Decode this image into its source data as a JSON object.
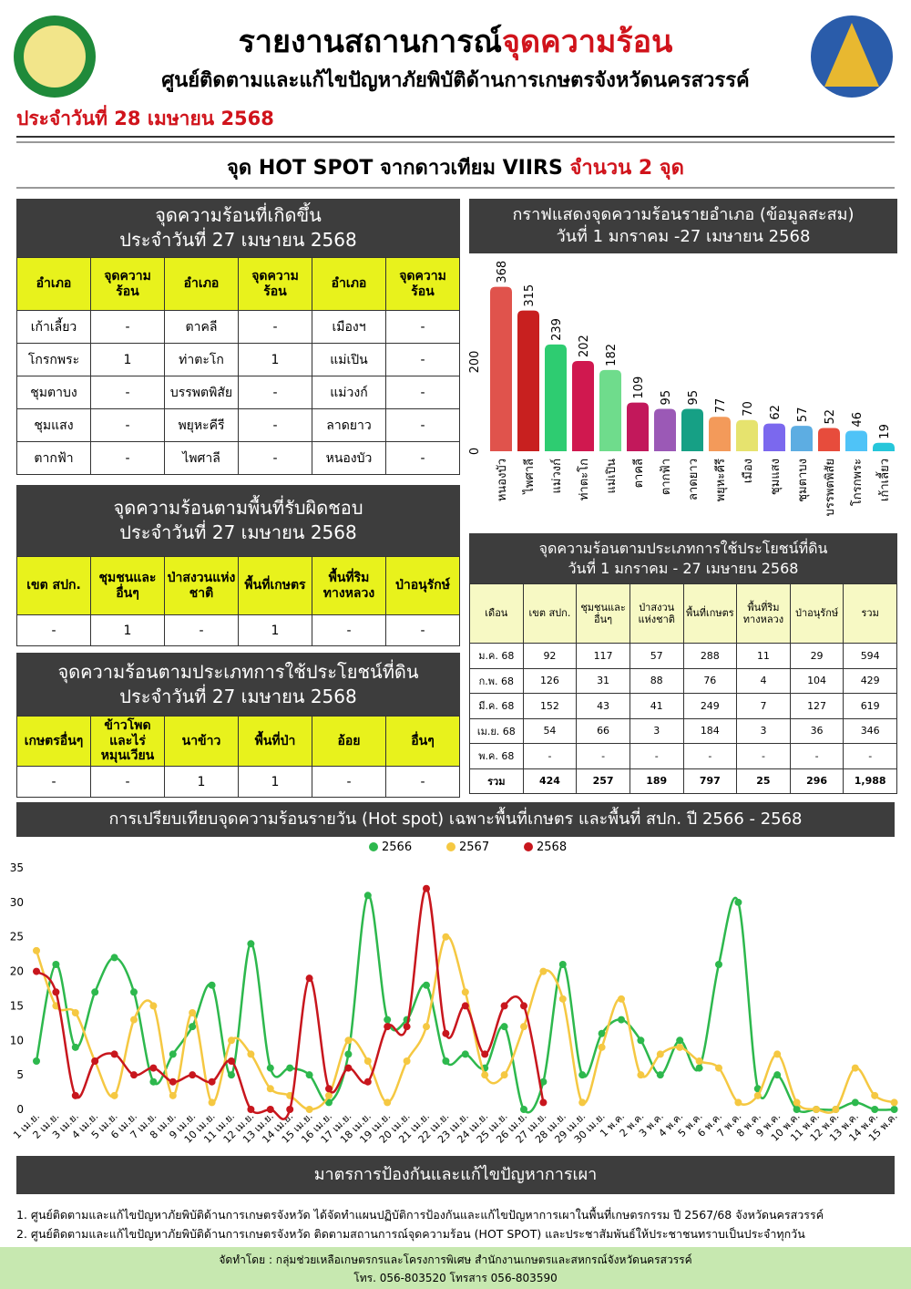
{
  "header": {
    "title": "รายงานสถานการณ์",
    "title_highlight": "จุดความร้อน",
    "subtitle": "ศูนย์ติดตามและแก้ไขปัญหาภัยพิบัติด้านการเกษตรจังหวัดนครสวรรค์",
    "date": "ประจำวันที่ 28 เมษายน 2568"
  },
  "banner": {
    "text": "จุด HOT SPOT จากดาวเทียม VIIRS",
    "highlight": "จำนวน 2 จุด"
  },
  "tables": [
    {
      "title": "จุดความร้อนที่เกิดขึ้น",
      "subtitle": "ประจำวันที่ 27 เมษายน 2568",
      "columns": [
        "อำเภอ",
        "จุดความร้อน",
        "อำเภอ",
        "จุดความร้อน",
        "อำเภอ",
        "จุดความร้อน"
      ],
      "rows": [
        [
          "เก้าเลี้ยว",
          "-",
          "ตาคลี",
          "-",
          "เมืองฯ",
          "-"
        ],
        [
          "โกรกพระ",
          "1",
          "ท่าตะโก",
          "1",
          "แม่เปิน",
          "-"
        ],
        [
          "ชุมตาบง",
          "-",
          "บรรพตพิสัย",
          "-",
          "แม่วงก์",
          "-"
        ],
        [
          "ชุมแสง",
          "-",
          "พยุหะคีรี",
          "-",
          "ลาดยาว",
          "-"
        ],
        [
          "ตากฟ้า",
          "-",
          "ไพศาลี",
          "-",
          "หนองบัว",
          "-"
        ]
      ]
    },
    {
      "title": "จุดความร้อนตามพื้นที่รับผิดชอบ",
      "subtitle": "ประจำวันที่ 27 เมษายน 2568",
      "columns": [
        "เขต สปก.",
        "ชุมชนและอื่นๆ",
        "ป่าสงวนแห่งชาติ",
        "พื้นที่เกษตร",
        "พื้นที่ริมทางหลวง",
        "ป่าอนุรักษ์"
      ],
      "rows": [
        [
          "-",
          "1",
          "-",
          "1",
          "-",
          "-"
        ]
      ]
    },
    {
      "title": "จุดความร้อนตามประเภทการใช้ประโยชน์ที่ดิน",
      "subtitle": "ประจำวันที่ 27 เมษายน 2568",
      "columns": [
        "เกษตรอื่นๆ",
        "ข้าวโพดและไร่หมุนเวียน",
        "นาข้าว",
        "พื้นที่ป่า",
        "อ้อย",
        "อื่นๆ"
      ],
      "rows": [
        [
          "-",
          "-",
          "1",
          "1",
          "-",
          "-"
        ]
      ]
    },
    {
      "title": "จุดความร้อนตามประเภทการใช้ประโยชน์ที่ดิน",
      "subtitle": "วันที่ 1 มกราคม - 27 เมษายน 2568",
      "columns": [
        "เดือน",
        "เขต สปก.",
        "ชุมชนและอื่นๆ",
        "ป่าสงวนแห่งชาติ",
        "พื้นที่เกษตร",
        "พื้นที่ริมทางหลวง",
        "ป่าอนุรักษ์",
        "รวม"
      ],
      "rows": [
        [
          "ม.ค. 68",
          "92",
          "117",
          "57",
          "288",
          "11",
          "29",
          "594"
        ],
        [
          "ก.พ. 68",
          "126",
          "31",
          "88",
          "76",
          "4",
          "104",
          "429"
        ],
        [
          "มี.ค. 68",
          "152",
          "43",
          "41",
          "249",
          "7",
          "127",
          "619"
        ],
        [
          "เม.ย. 68",
          "54",
          "66",
          "3",
          "184",
          "3",
          "36",
          "346"
        ],
        [
          "พ.ค. 68",
          "-",
          "-",
          "-",
          "-",
          "-",
          "-",
          "-"
        ],
        [
          "รวม",
          "424",
          "257",
          "189",
          "797",
          "25",
          "296",
          "1,988"
        ]
      ]
    }
  ],
  "chart_data": [
    {
      "type": "bar",
      "title": "กราฟแสดงจุดความร้อนรายอำเภอ (ข้อมูลสะสม)",
      "subtitle": "วันที่ 1 มกราคม -27 เมษายน 2568",
      "categories": [
        "หนองบัว",
        "ไพศาลี",
        "แม่วงก์",
        "ท่าตะโก",
        "แม่เปิน",
        "ตาคลี",
        "ตากฟ้า",
        "ลาดยาว",
        "พยุหะคีรี",
        "เมือง",
        "ชุมแสง",
        "ชุมตาบง",
        "บรรพตพิสัย",
        "โกรกพระ",
        "เก้าเลี้ยว"
      ],
      "values": [
        368,
        315,
        239,
        202,
        182,
        109,
        95,
        95,
        77,
        70,
        62,
        57,
        52,
        46,
        19
      ],
      "colors": [
        "#e0534c",
        "#c8201f",
        "#2ecc71",
        "#d0184f",
        "#6fdc8c",
        "#c2185b",
        "#9b59b6",
        "#16a085",
        "#f39a5a",
        "#e6e36e",
        "#7b68ee",
        "#5dade2",
        "#e74c3c",
        "#4fc3f7",
        "#26c6da"
      ],
      "ylim": [
        0,
        400
      ],
      "yticks": [
        0,
        200
      ],
      "grid": false
    },
    {
      "type": "line",
      "title": "การเปรียบเทียบจุดความร้อนรายวัน (Hot spot)  เฉพาะพื้นที่เกษตร และพื้นที่ สปก. ปี 2566 - 2568",
      "categories": [
        "1 เม.ย.",
        "2 เม.ย.",
        "3 เม.ย.",
        "4 เม.ย.",
        "5 เม.ย.",
        "6 เม.ย.",
        "7 เม.ย.",
        "8 เม.ย.",
        "9 เม.ย.",
        "10 เม.ย.",
        "11 เม.ย.",
        "12 เม.ย.",
        "13 เม.ย.",
        "14 เม.ย.",
        "15 เม.ย.",
        "16 เม.ย.",
        "17 เม.ย.",
        "18 เม.ย.",
        "19 เม.ย.",
        "20 เม.ย.",
        "21 เม.ย.",
        "22 เม.ย.",
        "23 เม.ย.",
        "24 เม.ย.",
        "25 เม.ย.",
        "26 เม.ย.",
        "27 เม.ย.",
        "28 เม.ย.",
        "29 เม.ย.",
        "30 เม.ย.",
        "1 พ.ค.",
        "2 พ.ค.",
        "3 พ.ค.",
        "4 พ.ค.",
        "5 พ.ค.",
        "6 พ.ค.",
        "7 พ.ค.",
        "8 พ.ค.",
        "9 พ.ค.",
        "10 พ.ค.",
        "11 พ.ค.",
        "12 พ.ค.",
        "13 พ.ค.",
        "14 พ.ค.",
        "15 พ.ค."
      ],
      "series": [
        {
          "name": "2566",
          "color": "#2db84d",
          "values": [
            7,
            21,
            9,
            17,
            22,
            17,
            4,
            8,
            12,
            18,
            5,
            24,
            6,
            6,
            5,
            1,
            8,
            31,
            13,
            13,
            18,
            7,
            8,
            6,
            12,
            0,
            4,
            21,
            5,
            11,
            13,
            10,
            5,
            10,
            6,
            21,
            30,
            3,
            5,
            0,
            0,
            0,
            1,
            0,
            0
          ]
        },
        {
          "name": "2567",
          "color": "#f5c842",
          "values": [
            23,
            15,
            14,
            7,
            2,
            13,
            15,
            2,
            14,
            1,
            10,
            8,
            3,
            2,
            0,
            2,
            10,
            7,
            1,
            7,
            12,
            25,
            17,
            5,
            5,
            12,
            20,
            16,
            1,
            9,
            16,
            5,
            8,
            9,
            7,
            6,
            1,
            2,
            8,
            1,
            0,
            0,
            6,
            2,
            1
          ]
        },
        {
          "name": "2568",
          "color": "#c8161d",
          "values": [
            20,
            17,
            2,
            7,
            8,
            5,
            6,
            4,
            5,
            4,
            7,
            0,
            0,
            0,
            19,
            3,
            6,
            4,
            12,
            12,
            32,
            11,
            15,
            8,
            15,
            15,
            1,
            null,
            null,
            null,
            null,
            null,
            null,
            null,
            null,
            null,
            null,
            null,
            null,
            null,
            null,
            null,
            null,
            null,
            null
          ]
        }
      ],
      "ylim": [
        0,
        35
      ],
      "yticks": [
        0,
        5,
        10,
        15,
        20,
        25,
        30,
        35
      ],
      "grid": false,
      "legend": "top"
    }
  ],
  "measures": {
    "title": "มาตรการป้องกันและแก้ไขปัญหาการเผา",
    "items": [
      "1. ศูนย์ติดตามและแก้ไขปัญหาภัยพิบัติด้านการเกษตรจังหวัด ได้จัดทำแผนปฏิบัติการป้องกันและแก้ไขปัญหาการเผาในพื้นที่เกษตรกรรม ปี 2567/68 จังหวัดนครสวรรค์",
      "2. ศูนย์ติดตามและแก้ไขปัญหาภัยพิบัติด้านการเกษตรจังหวัด ติดตามสถานการณ์จุดความร้อน (HOT SPOT) และประชาสัมพันธ์ให้ประชาชนทราบเป็นประจำทุกวัน"
    ]
  },
  "footer": {
    "credit": "จัดทำโดย : กลุ่มช่วยเหลือเกษตรกรและโครงการพิเศษ สำนักงานเกษตรและสหกรณ์จังหวัดนครสวรรค์",
    "contact": "โทร. 056-803520 โทรสาร 056-803590"
  }
}
